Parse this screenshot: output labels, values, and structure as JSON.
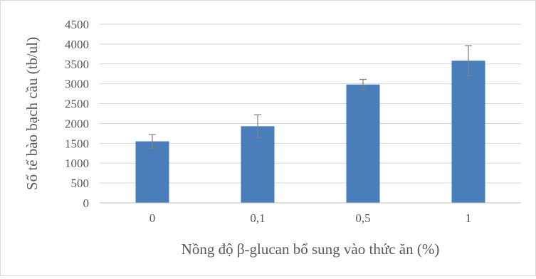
{
  "chart_data": {
    "type": "bar",
    "title": "",
    "xlabel": "Nồng độ β-glucan bổ sung vào thức ăn (%)",
    "ylabel": "Số tế bào bạch cầu (tb/ul)",
    "categories": [
      "0",
      "0,1",
      "0,5",
      "1"
    ],
    "values": [
      1550,
      1930,
      2980,
      3580
    ],
    "error": [
      170,
      290,
      130,
      380
    ],
    "ylim": [
      0,
      4500
    ],
    "yticks": [
      0,
      500,
      1000,
      1500,
      2000,
      2500,
      3000,
      3500,
      4000,
      4500
    ],
    "grid": true,
    "legend": "none",
    "colors": {
      "bar": "#4a7ebb",
      "grid": "#d9d9d9",
      "axis": "#bfbfbf",
      "error_bar": "#7f7f7f",
      "text": "#595959"
    }
  }
}
